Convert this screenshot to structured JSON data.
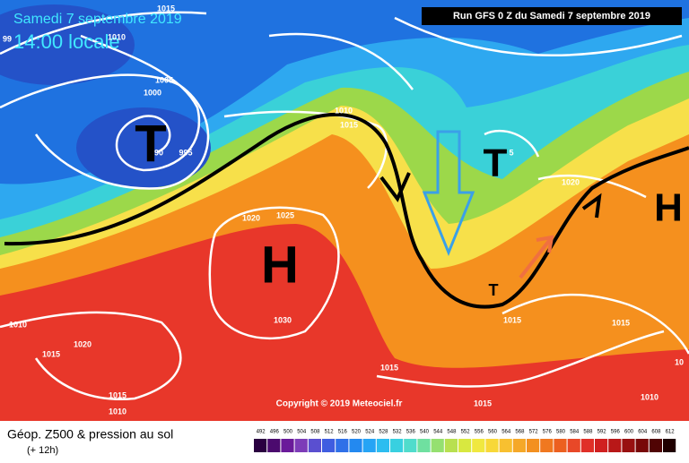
{
  "header": {
    "date": "Samedi 7 septembre 2019",
    "time": "14:00 locale",
    "run": "Run GFS 0 Z du Samedi 7 septembre 2019"
  },
  "copyright": "Copyright © 2019 Meteociel.fr",
  "footer": {
    "title": "Géop. Z500 & pression au sol",
    "lead": "(+ 12h)"
  },
  "centers": [
    "T",
    "H",
    "T",
    "H",
    "T"
  ],
  "isobar_labels": [
    "1015",
    "1010",
    "99",
    "1005",
    "1000",
    "90",
    "995",
    "1010",
    "1015",
    "1020",
    "1025",
    "1030",
    "1010",
    "1015",
    "1020",
    "1015",
    "1010",
    "1015",
    "1015",
    "1015",
    "1010",
    "10",
    "1015",
    "1020",
    "5"
  ],
  "colorbar": {
    "values": [
      492,
      496,
      500,
      504,
      508,
      512,
      516,
      520,
      524,
      528,
      532,
      536,
      540,
      544,
      548,
      552,
      556,
      560,
      564,
      568,
      572,
      576,
      580,
      584,
      588,
      592,
      596,
      600,
      604,
      608,
      612
    ],
    "colors": [
      "#2a0040",
      "#4b0a6e",
      "#6a1a9a",
      "#7d3cb8",
      "#5a4fd0",
      "#3f5de0",
      "#2f70e8",
      "#2389f0",
      "#26a4f5",
      "#2cbdf0",
      "#38d0e0",
      "#50dccc",
      "#6fe0a0",
      "#95e070",
      "#b8e050",
      "#d8e840",
      "#f0e840",
      "#f8d838",
      "#f8c030",
      "#f5a828",
      "#f39020",
      "#f07820",
      "#ec6020",
      "#e84828",
      "#e03028",
      "#d02020",
      "#b81818",
      "#981010",
      "#780808",
      "#500404",
      "#200000"
    ]
  }
}
